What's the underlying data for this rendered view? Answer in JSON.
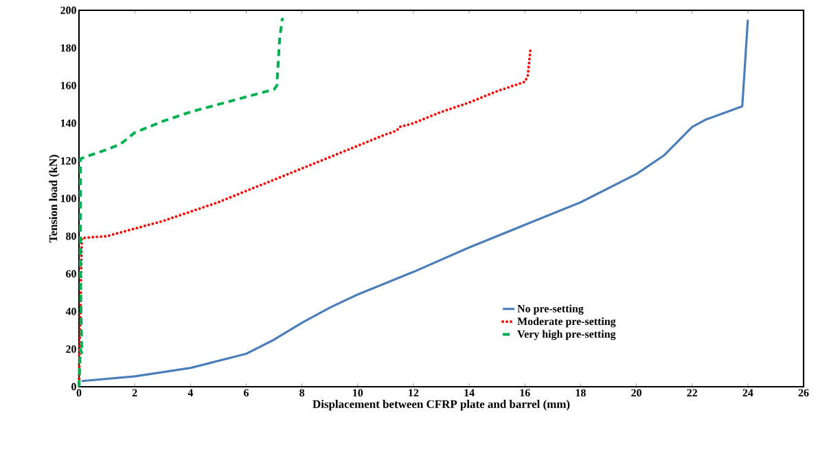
{
  "chart_data": {
    "type": "line",
    "xlabel": "Displacement  between CFRP plate and barrel  (mm)",
    "ylabel": "Tension load  (kN)",
    "xlim": [
      0,
      26
    ],
    "xticks": [
      0,
      2,
      4,
      6,
      8,
      10,
      12,
      14,
      16,
      18,
      20,
      22,
      24,
      26
    ],
    "ylim": [
      0,
      200
    ],
    "yticks": [
      0,
      20,
      40,
      60,
      80,
      100,
      120,
      140,
      160,
      180,
      200
    ],
    "grid": false,
    "legend": "bottom right",
    "marker": "none",
    "series": [
      {
        "name": "No pre-setting",
        "color": "#4a7ebb",
        "line_style": "solid",
        "x": [
          0.1,
          2,
          4,
          6,
          7,
          8,
          9,
          10,
          12,
          14,
          16,
          18,
          20,
          21,
          22,
          22.5,
          23.8,
          24
        ],
        "values": [
          3,
          5.5,
          10,
          17.5,
          25,
          34,
          42,
          49,
          61,
          74,
          86,
          98,
          113,
          123,
          138,
          142,
          149,
          195
        ]
      },
      {
        "name": "Moderate pre-setting",
        "color": "#ff0000",
        "line_style": "dotted",
        "x": [
          0,
          0.1,
          1,
          2,
          3,
          4,
          5,
          6,
          7,
          8,
          9,
          10,
          11,
          11.4,
          11.5,
          12,
          13,
          14,
          15,
          16,
          16.1,
          16.2
        ],
        "values": [
          2,
          79,
          80,
          84,
          88,
          93,
          98,
          104,
          110,
          116,
          122,
          128,
          134,
          136,
          138,
          140,
          146,
          151,
          157,
          162,
          165,
          179
        ]
      },
      {
        "name": "Very high pre-setting",
        "color": "#00b050",
        "line_style": "dashed",
        "x": [
          0,
          0.05,
          0.1,
          0.05,
          0.05,
          0.2,
          1,
          1.5,
          2,
          3,
          4,
          5,
          6,
          7,
          7.1,
          7.2,
          7.3
        ],
        "values": [
          0,
          20,
          18,
          60,
          121,
          122,
          126,
          129,
          135,
          141,
          146,
          150,
          154,
          158,
          160,
          185,
          196
        ]
      }
    ]
  }
}
